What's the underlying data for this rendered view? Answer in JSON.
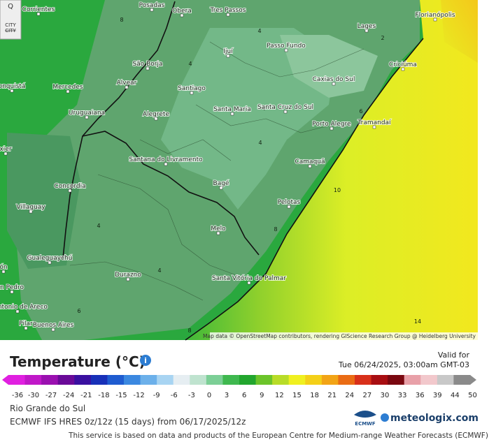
{
  "map": {
    "controls": {
      "zoom": "Q",
      "city_on": "CITY",
      "city_off": "CITY"
    },
    "cities": [
      "Corrientes",
      "Posadas",
      "Obera",
      "Tres Passos",
      "Florianópolis",
      "Lages",
      "Ijuí",
      "Passo Fundo",
      "São Borja",
      "Mercedes",
      "Alvear",
      "Santiago",
      "Caxias do Sul",
      "Criciúma",
      "Uruguaiana",
      "Alegrete",
      "Santa Maria",
      "Santa Cruz do Sul",
      "Porto Alegre",
      "Tramandaí",
      "Santana do Livramento",
      "Camaquã",
      "Concordia",
      "Bagé",
      "Villaguay",
      "Pelotas",
      "Melo",
      "Gualeguaychú",
      "Durazno",
      "Santa Vitória do Palmar",
      "n Pedro",
      "n Antonio de Areco",
      "Pilar",
      "Buenos Aires",
      "onquistá",
      "xier",
      "ón"
    ],
    "contour_labels": [
      "8",
      "4",
      "4",
      "4",
      "4",
      "4",
      "4",
      "8",
      "8",
      "10",
      "14",
      "6",
      "2",
      "6"
    ],
    "attribution": "Map data © OpenStreetMap contributors, rendering GIScience Research Group @ Heidelberg University"
  },
  "legend": {
    "title": "Temperature (°C)",
    "info": "i",
    "valid_label": "Valid for",
    "valid_time": "Tue 06/24/2025, 03:00am GMT-03",
    "ticks": [
      -36,
      -30,
      -27,
      -24,
      -21,
      -18,
      -15,
      -12,
      -9,
      -6,
      -3,
      0,
      3,
      6,
      9,
      12,
      15,
      18,
      21,
      24,
      27,
      30,
      33,
      36,
      39,
      44,
      50
    ],
    "colors": [
      "#e020e0",
      "#c018c8",
      "#9a10b0",
      "#6a0a98",
      "#3a10a0",
      "#1830b8",
      "#1f5cd0",
      "#3b88e0",
      "#6cb0ea",
      "#a8d4f2",
      "#e6eef2",
      "#bfe3cf",
      "#7ccf96",
      "#3fb84f",
      "#22a62e",
      "#6cc42a",
      "#b8dc28",
      "#f0f020",
      "#f4d018",
      "#f2a416",
      "#ea6c14",
      "#d8301a",
      "#a80e12",
      "#7a0810",
      "#e8a0a8",
      "#f2c8cc",
      "#c8c8c8",
      "#8a8a8a"
    ]
  },
  "footer": {
    "region": "Rio Grande do Sul",
    "model": "ECMWF IFS HRES 0z/12z (15 days) from 06/17/2025/12z",
    "ecmwf": "ECMWF",
    "brand": "meteologix.com",
    "credit": "This service is based on data and products of the European Centre for Medium-range Weather Forecasts (ECMWF)"
  }
}
